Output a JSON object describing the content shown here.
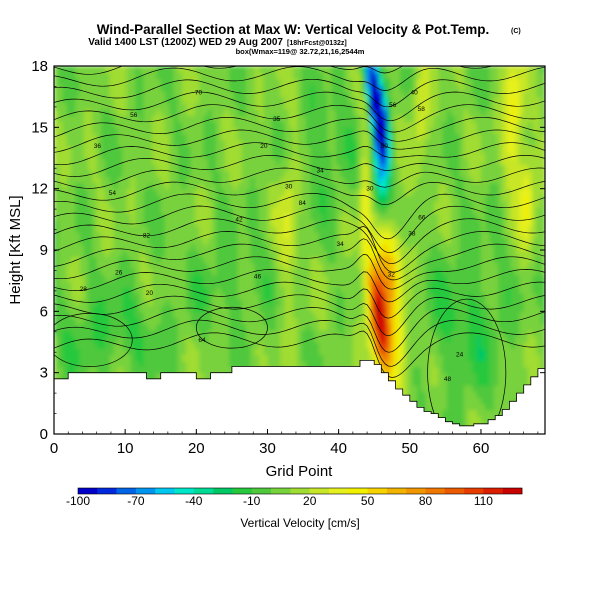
{
  "chart_data": {
    "type": "heatmap",
    "title": "Wind-Parallel Section at Max W: Vertical Velocity & Pot.Temp.",
    "title_mark": "(C)",
    "subtitle_main": "Valid 1400 LST (1200Z) WED 29 Aug 2007",
    "subtitle_note": "[18hrFcst@0132z]",
    "subtitle2": "box(Wmax=119@ 32.72,21,16,2544m",
    "xlabel": "Grid Point",
    "ylabel": "Height [Kft MSL]",
    "xlim": [
      0,
      69
    ],
    "ylim": [
      0,
      18
    ],
    "xticks": [
      0,
      10,
      20,
      30,
      40,
      50,
      60
    ],
    "yticks": [
      0,
      3,
      6,
      9,
      12,
      15,
      18
    ],
    "colorbar": {
      "label": "Vertical Velocity [cm/s]",
      "range": [
        -100,
        130
      ],
      "ticks": [
        -100,
        -70,
        -40,
        -10,
        20,
        50,
        80,
        110
      ],
      "colors": [
        "#0000c8",
        "#0028dc",
        "#0064e6",
        "#0096f0",
        "#00c8f0",
        "#00e6c8",
        "#00dc96",
        "#00c864",
        "#28c83c",
        "#50c83c",
        "#78d23c",
        "#a0dc32",
        "#c8e628",
        "#e6f01e",
        "#f0f000",
        "#f5d200",
        "#f0b400",
        "#f09600",
        "#f07800",
        "#eb5a00",
        "#e63c00",
        "#dc1e00",
        "#c80000"
      ]
    },
    "isentrope_labels": [
      "70",
      "56",
      "36",
      "35",
      "20",
      "34",
      "54",
      "84",
      "82",
      "42",
      "40",
      "38",
      "58",
      "28",
      "56",
      "50",
      "66",
      "26",
      "30",
      "32",
      "46",
      "64",
      "48",
      "24",
      "20",
      "30",
      "34"
    ],
    "terrain_profile": {
      "x": [
        0,
        1,
        2,
        3,
        4,
        5,
        6,
        7,
        8,
        9,
        10,
        11,
        12,
        13,
        14,
        15,
        16,
        17,
        18,
        19,
        20,
        21,
        22,
        23,
        24,
        25,
        26,
        27,
        28,
        29,
        30,
        31,
        32,
        33,
        34,
        35,
        36,
        37,
        38,
        39,
        40,
        41,
        42,
        43,
        44,
        45,
        46,
        47,
        48,
        49,
        50,
        51,
        52,
        53,
        54,
        55,
        56,
        57,
        58,
        59,
        60,
        61,
        62,
        63,
        64,
        65,
        66,
        67,
        68,
        69
      ],
      "height_kft": [
        2.7,
        2.7,
        3.0,
        3.0,
        3.0,
        3.0,
        3.0,
        3.0,
        3.0,
        3.0,
        3.0,
        3.0,
        3.0,
        2.7,
        2.7,
        3.0,
        3.0,
        3.0,
        3.0,
        3.0,
        2.7,
        2.7,
        3.0,
        3.0,
        3.0,
        3.3,
        3.3,
        3.3,
        3.3,
        3.3,
        3.3,
        3.3,
        3.3,
        3.3,
        3.3,
        3.3,
        3.3,
        3.3,
        3.3,
        3.3,
        3.3,
        3.3,
        3.3,
        3.6,
        3.6,
        3.4,
        3.0,
        2.6,
        2.2,
        1.9,
        1.6,
        1.3,
        1.1,
        1.0,
        0.8,
        0.6,
        0.5,
        0.4,
        0.4,
        0.5,
        0.5,
        0.7,
        0.9,
        1.2,
        1.6,
        2.0,
        2.4,
        2.8,
        3.2,
        3.5
      ]
    }
  }
}
